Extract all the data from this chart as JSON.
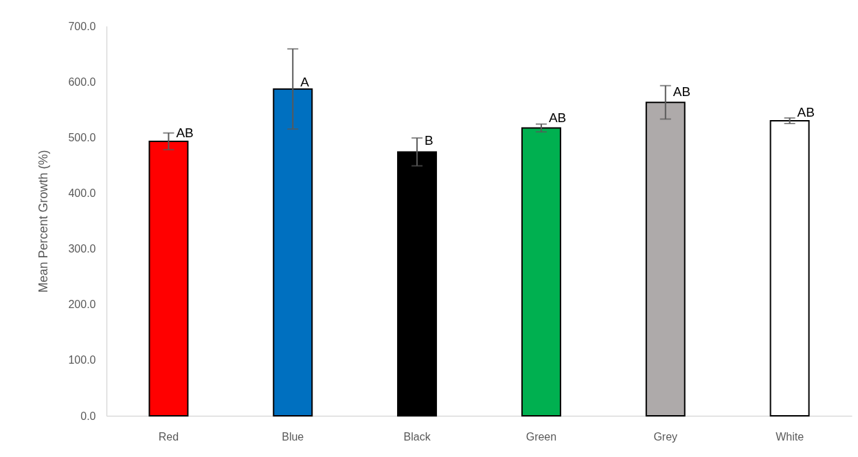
{
  "chart_data": {
    "type": "bar",
    "ylabel": "Mean Percent Growth (%)",
    "categories": [
      "Red",
      "Blue",
      "Black",
      "Green",
      "Grey",
      "White"
    ],
    "values": [
      493,
      587,
      474,
      517,
      563,
      530
    ],
    "colors": [
      "#ff0000",
      "#0070c0",
      "#000000",
      "#00b050",
      "#aeaaaa",
      "#ffffff"
    ],
    "errors": [
      15,
      72,
      25,
      7,
      30,
      5
    ],
    "ylim": [
      0,
      700
    ],
    "yticks": [
      {
        "value": 0,
        "label": "0.0"
      },
      {
        "value": 100,
        "label": "100.0"
      },
      {
        "value": 200,
        "label": "200.0"
      },
      {
        "value": 300,
        "label": "300.0"
      },
      {
        "value": 400,
        "label": "400.0"
      },
      {
        "value": 500,
        "label": "500.0"
      },
      {
        "value": 600,
        "label": "600.0"
      },
      {
        "value": 700,
        "label": "700.0"
      }
    ],
    "annotations": [
      {
        "text": "AB",
        "x": "Red",
        "y": 496
      },
      {
        "text": "A",
        "x": "Blue",
        "y": 587
      },
      {
        "text": "B",
        "x": "Black",
        "y": 482
      },
      {
        "text": "AB",
        "x": "Green",
        "y": 523
      },
      {
        "text": "AB",
        "x": "Grey",
        "y": 569
      },
      {
        "text": "AB",
        "x": "White",
        "y": 533
      }
    ]
  }
}
